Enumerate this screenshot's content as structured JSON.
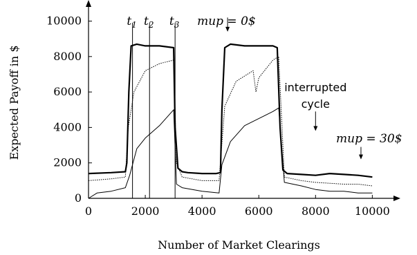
{
  "chart_data": {
    "type": "line",
    "xlabel": "Number of Market Clearings",
    "ylabel": "Expected Payoff in $",
    "xlim": [
      0,
      10600
    ],
    "ylim": [
      0,
      10800
    ],
    "xticks": [
      0,
      2000,
      4000,
      6000,
      8000,
      10000
    ],
    "yticks": [
      0,
      2000,
      4000,
      6000,
      8000,
      10000
    ],
    "grid": false,
    "legend": "none",
    "series": [
      {
        "style": "thick-solid",
        "x": [
          0,
          800,
          1300,
          1350,
          1420,
          1500,
          1700,
          2000,
          2500,
          3000,
          3050,
          3150,
          3300,
          3500,
          4000,
          4500,
          4650,
          4700,
          4800,
          5000,
          5500,
          5800,
          6000,
          6500,
          6650,
          6750,
          6850,
          7000,
          7500,
          8000,
          8500,
          9000,
          9500,
          10000
        ],
        "y": [
          1400,
          1450,
          1500,
          2000,
          6000,
          8600,
          8700,
          8600,
          8600,
          8500,
          4000,
          1700,
          1500,
          1450,
          1400,
          1400,
          1450,
          5000,
          8500,
          8700,
          8600,
          8600,
          8600,
          8600,
          8500,
          4000,
          1600,
          1400,
          1350,
          1300,
          1400,
          1350,
          1300,
          1200
        ]
      },
      {
        "style": "dotted",
        "x": [
          0,
          800,
          1300,
          1400,
          1600,
          2000,
          2500,
          3000,
          3100,
          3300,
          4000,
          4600,
          4800,
          5200,
          5800,
          5900,
          6000,
          6500,
          6700,
          6900,
          7500,
          8000,
          8500,
          9000,
          9500,
          10000
        ],
        "y": [
          1000,
          1100,
          1200,
          4000,
          6000,
          7200,
          7600,
          7800,
          2000,
          1200,
          1000,
          1000,
          5200,
          6600,
          7200,
          6000,
          6800,
          7800,
          8000,
          1200,
          1000,
          900,
          850,
          800,
          800,
          700
        ]
      },
      {
        "style": "thin-solid",
        "x": [
          0,
          300,
          800,
          1300,
          1450,
          1700,
          2000,
          2500,
          3000,
          3100,
          3300,
          4000,
          4600,
          4700,
          5000,
          5500,
          6000,
          6500,
          6700,
          6900,
          7500,
          8000,
          8500,
          9000,
          9500,
          10000
        ],
        "y": [
          0,
          300,
          400,
          600,
          1300,
          2800,
          3400,
          4100,
          5000,
          800,
          600,
          400,
          300,
          1900,
          3200,
          4100,
          4500,
          4900,
          5100,
          900,
          700,
          500,
          400,
          400,
          300,
          300
        ]
      }
    ],
    "markers": [
      {
        "label": "t",
        "sub": "1",
        "x": 1550
      },
      {
        "label": "t",
        "sub": "2",
        "x": 2150
      },
      {
        "label": "t",
        "sub": "3",
        "x": 3050
      }
    ],
    "annotations": [
      {
        "label_it": "mup",
        "label_rm": " = 0$",
        "arrow_x": 4900,
        "arrow_y_from": 10200,
        "arrow_y_to": 9400
      },
      {
        "label": "interrupted",
        "label2": "cycle",
        "arrow_x": 8000,
        "arrow_y_from": 4900,
        "arrow_y_to": 3800
      },
      {
        "label_it": "mup",
        "label_rm": " = 30$",
        "arrow_x": 9600,
        "arrow_y_from": 2900,
        "arrow_y_to": 2200
      }
    ]
  }
}
